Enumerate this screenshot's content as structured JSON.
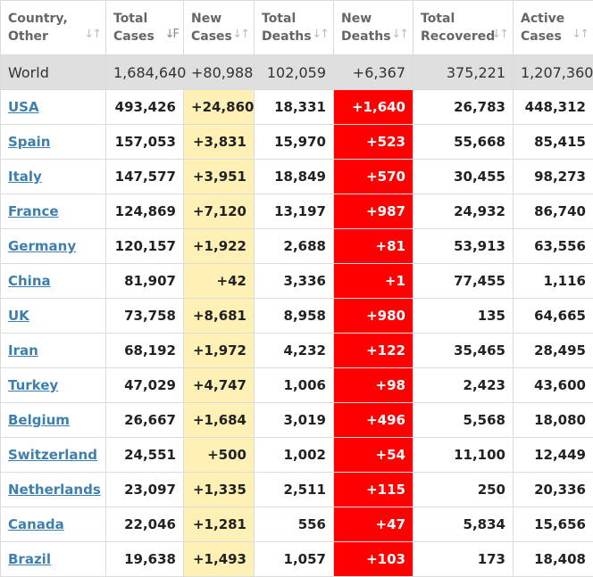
{
  "headers": [
    {
      "label": "Country,\nOther"
    },
    {
      "label": "Total\nCases"
    },
    {
      "label": "New\nCases"
    },
    {
      "label": "Total\nDeaths"
    },
    {
      "label": "New\nDeaths"
    },
    {
      "label": "Total\nRecovered"
    },
    {
      "label": "Active\nCases"
    }
  ],
  "sort_icons": {
    "sorted": "↓F",
    "unsorted": "↓↑"
  },
  "colors": {
    "new_cases_bg": "#fff0b5",
    "new_deaths_bg": "#ff0000",
    "world_bg": "#dfdfdf",
    "link": "#3f7fab"
  },
  "world": {
    "country": "World",
    "total_cases": "1,684,640",
    "new_cases": "+80,988",
    "total_deaths": "102,059",
    "new_deaths": "+6,367",
    "total_recovered": "375,221",
    "active_cases": "1,207,360"
  },
  "rows": [
    {
      "country": "USA",
      "total_cases": "493,426",
      "new_cases": "+24,860",
      "total_deaths": "18,331",
      "new_deaths": "+1,640",
      "total_recovered": "26,783",
      "active_cases": "448,312"
    },
    {
      "country": "Spain",
      "total_cases": "157,053",
      "new_cases": "+3,831",
      "total_deaths": "15,970",
      "new_deaths": "+523",
      "total_recovered": "55,668",
      "active_cases": "85,415"
    },
    {
      "country": "Italy",
      "total_cases": "147,577",
      "new_cases": "+3,951",
      "total_deaths": "18,849",
      "new_deaths": "+570",
      "total_recovered": "30,455",
      "active_cases": "98,273"
    },
    {
      "country": "France",
      "total_cases": "124,869",
      "new_cases": "+7,120",
      "total_deaths": "13,197",
      "new_deaths": "+987",
      "total_recovered": "24,932",
      "active_cases": "86,740"
    },
    {
      "country": "Germany",
      "total_cases": "120,157",
      "new_cases": "+1,922",
      "total_deaths": "2,688",
      "new_deaths": "+81",
      "total_recovered": "53,913",
      "active_cases": "63,556"
    },
    {
      "country": "China",
      "total_cases": "81,907",
      "new_cases": "+42",
      "total_deaths": "3,336",
      "new_deaths": "+1",
      "total_recovered": "77,455",
      "active_cases": "1,116"
    },
    {
      "country": "UK",
      "total_cases": "73,758",
      "new_cases": "+8,681",
      "total_deaths": "8,958",
      "new_deaths": "+980",
      "total_recovered": "135",
      "active_cases": "64,665"
    },
    {
      "country": "Iran",
      "total_cases": "68,192",
      "new_cases": "+1,972",
      "total_deaths": "4,232",
      "new_deaths": "+122",
      "total_recovered": "35,465",
      "active_cases": "28,495"
    },
    {
      "country": "Turkey",
      "total_cases": "47,029",
      "new_cases": "+4,747",
      "total_deaths": "1,006",
      "new_deaths": "+98",
      "total_recovered": "2,423",
      "active_cases": "43,600"
    },
    {
      "country": "Belgium",
      "total_cases": "26,667",
      "new_cases": "+1,684",
      "total_deaths": "3,019",
      "new_deaths": "+496",
      "total_recovered": "5,568",
      "active_cases": "18,080"
    },
    {
      "country": "Switzerland",
      "total_cases": "24,551",
      "new_cases": "+500",
      "total_deaths": "1,002",
      "new_deaths": "+54",
      "total_recovered": "11,100",
      "active_cases": "12,449"
    },
    {
      "country": "Netherlands",
      "total_cases": "23,097",
      "new_cases": "+1,335",
      "total_deaths": "2,511",
      "new_deaths": "+115",
      "total_recovered": "250",
      "active_cases": "20,336"
    },
    {
      "country": "Canada",
      "total_cases": "22,046",
      "new_cases": "+1,281",
      "total_deaths": "556",
      "new_deaths": "+47",
      "total_recovered": "5,834",
      "active_cases": "15,656"
    },
    {
      "country": "Brazil",
      "total_cases": "19,638",
      "new_cases": "+1,493",
      "total_deaths": "1,057",
      "new_deaths": "+103",
      "total_recovered": "173",
      "active_cases": "18,408"
    }
  ]
}
